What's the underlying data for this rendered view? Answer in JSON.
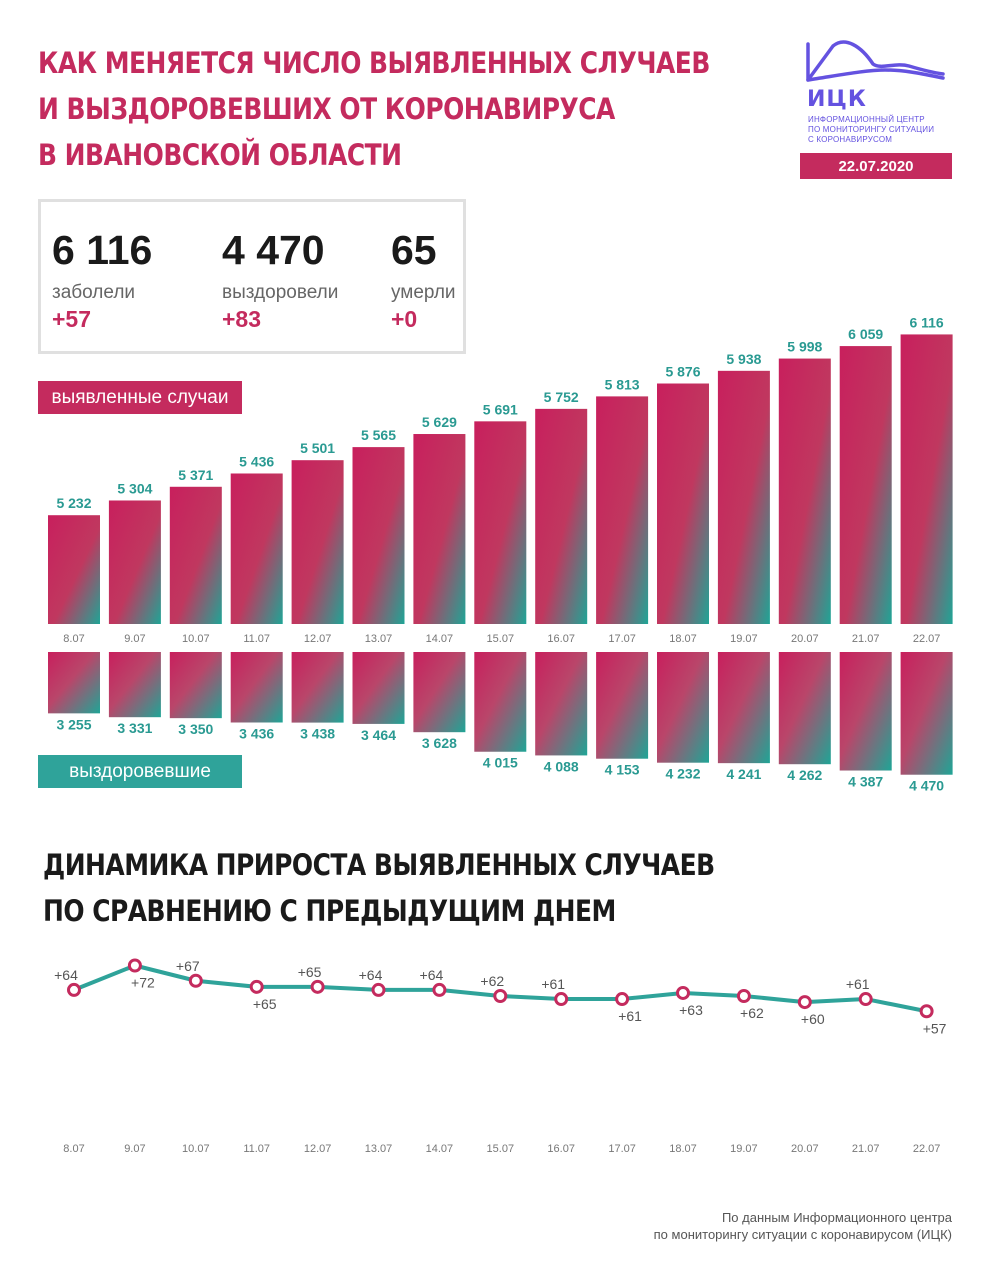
{
  "header": {
    "title_lines": [
      "КАК МЕНЯЕТСЯ ЧИСЛО ВЫЯВЛЕННЫХ СЛУЧАЕВ",
      "И ВЫЗДОРОВЕВШИХ ОТ КОРОНАВИРУСА",
      "В ИВАНОВСКОЙ ОБЛАСТИ"
    ],
    "logo_name": "ИЦК",
    "logo_sub": [
      "ИНФОРМАЦИОННЫЙ ЦЕНТР",
      "ПО МОНИТОРИНГУ СИТУАЦИИ",
      "С КОРОНАВИРУСОМ"
    ],
    "date": "22.07.2020"
  },
  "stats": [
    {
      "value": "6 116",
      "label": "заболели",
      "delta": "+57"
    },
    {
      "value": "4 470",
      "label": "выздоровели",
      "delta": "+83"
    },
    {
      "value": "65",
      "label": "умерли",
      "delta": "+0"
    }
  ],
  "labels": {
    "cases": "выявленные случаи",
    "recovered": "выздоровевшие"
  },
  "section2_title": [
    "ДИНАМИКА ПРИРОСТА ВЫЯВЛЕННЫХ СЛУЧАЕВ",
    "ПО СРАВНЕНИЮ С ПРЕДЫДУЩИМ ДНЕМ"
  ],
  "source": [
    "По данным Информационного центра",
    "по мониторингу ситуации с коронавирусом (ИЦК)"
  ],
  "colors": {
    "accent": "#c42b5e",
    "teal": "#2fa39a",
    "logo": "#6452e0"
  },
  "chart_data": [
    {
      "type": "bar",
      "categories": [
        "8.07",
        "9.07",
        "10.07",
        "11.07",
        "12.07",
        "13.07",
        "14.07",
        "15.07",
        "16.07",
        "17.07",
        "18.07",
        "19.07",
        "20.07",
        "21.07",
        "22.07"
      ],
      "series": [
        {
          "name": "выявленные случаи",
          "values": [
            5232,
            5304,
            5371,
            5436,
            5501,
            5565,
            5629,
            5691,
            5752,
            5813,
            5876,
            5938,
            5998,
            6059,
            6116
          ],
          "labels": [
            "5 232",
            "5 304",
            "5 371",
            "5 436",
            "5 501",
            "5 565",
            "5 629",
            "5 691",
            "5 752",
            "5 813",
            "5 876",
            "5 938",
            "5 998",
            "6 059",
            "6 116"
          ]
        },
        {
          "name": "выздоровевшие",
          "values": [
            3255,
            3331,
            3350,
            3436,
            3438,
            3464,
            3628,
            4015,
            4088,
            4153,
            4232,
            4241,
            4262,
            4387,
            4470
          ],
          "labels": [
            "3 255",
            "3 331",
            "3 350",
            "3 436",
            "3 438",
            "3 464",
            "3 628",
            "4 015",
            "4 088",
            "4 153",
            "4 232",
            "4 241",
            "4 262",
            "4 387",
            "4 470"
          ]
        }
      ]
    },
    {
      "type": "line",
      "x": [
        "8.07",
        "9.07",
        "10.07",
        "11.07",
        "12.07",
        "13.07",
        "14.07",
        "15.07",
        "16.07",
        "17.07",
        "18.07",
        "19.07",
        "20.07",
        "21.07",
        "22.07"
      ],
      "y": [
        64,
        72,
        67,
        65,
        65,
        64,
        64,
        62,
        61,
        61,
        63,
        62,
        60,
        61,
        57
      ],
      "labels": [
        "+64",
        "+72",
        "+67",
        "+65",
        "+65",
        "+64",
        "+64",
        "+62",
        "+61",
        "+61",
        "+63",
        "+62",
        "+60",
        "+61",
        "+57"
      ],
      "label_position": [
        "above",
        "below",
        "above",
        "below",
        "above",
        "above",
        "above",
        "above",
        "above",
        "below",
        "below",
        "below",
        "below",
        "above",
        "below"
      ]
    }
  ]
}
